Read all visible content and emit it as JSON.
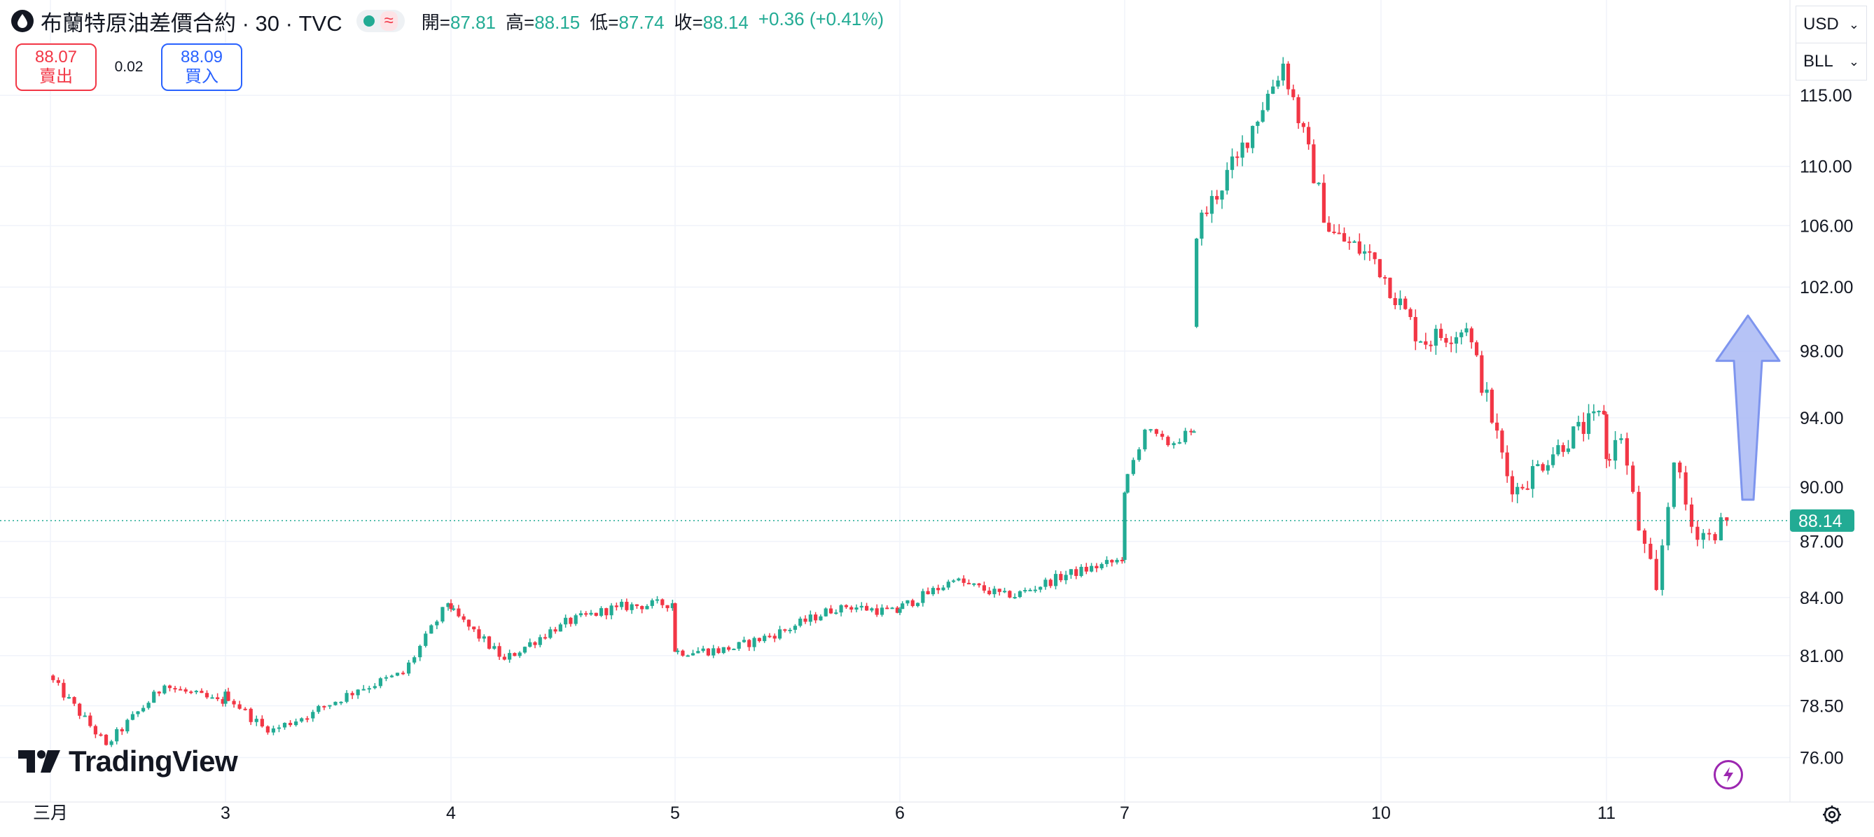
{
  "header": {
    "title": "布蘭特原油差價合約 · 30 · TVC",
    "status_symbol": "≈",
    "ohlc": {
      "open_label": "開=",
      "open": "87.81",
      "high_label": "高=",
      "high": "88.15",
      "low_label": "低=",
      "low": "87.74",
      "close_label": "收=",
      "close": "88.14",
      "change": "+0.36 (+0.41%)"
    }
  },
  "quote": {
    "sell_price": "88.07",
    "sell_label": "賣出",
    "spread": "0.02",
    "buy_price": "88.09",
    "buy_label": "買入"
  },
  "dropdowns": {
    "currency": "USD",
    "unit": "BLL"
  },
  "branding": {
    "logo_text": "TradingView"
  },
  "colors": {
    "up": "#22ab94",
    "down": "#f23645",
    "grid": "#f0f3fa",
    "price_line": "#22ab94",
    "arrow_fill": "#a9b9f5",
    "arrow_stroke": "#7e95ee"
  },
  "icons": {
    "bolt": "lightning-icon",
    "settings": "gear-icon",
    "symbol": "oil-drop-icon"
  },
  "chart_data": {
    "type": "candlestick",
    "interval": "30",
    "yaxis": {
      "ticks": [
        "115.00",
        "110.00",
        "106.00",
        "102.00",
        "98.00",
        "94.00",
        "90.00",
        "87.00",
        "84.00",
        "81.00",
        "78.50",
        "76.00"
      ],
      "scale": "log",
      "range": [
        74.5,
        121
      ]
    },
    "xaxis": {
      "ticks": [
        "三月",
        "3",
        "4",
        "5",
        "6",
        "7",
        "10",
        "11"
      ]
    },
    "last_price": "88.14",
    "grid": true,
    "annotation": "blue upward arrow on right side",
    "anchors": [
      {
        "day": "三月",
        "open": 80,
        "close": 79
      },
      {
        "day": "三月",
        "close": 76.6
      },
      {
        "day": "三月",
        "close": 79.5
      },
      {
        "day": "三月",
        "close": 78.6
      },
      {
        "day": "3",
        "close": 79.2
      },
      {
        "day": "3",
        "close": 77.2
      },
      {
        "day": "3",
        "close": 78.2
      },
      {
        "day": "3",
        "close": 79.3
      },
      {
        "day": "3",
        "close": 80.1
      },
      {
        "day": "3",
        "close": 83.7
      },
      {
        "day": "4",
        "close": 83.4
      },
      {
        "day": "4",
        "close": 80.8
      },
      {
        "day": "4",
        "close": 82.6
      },
      {
        "day": "4",
        "close": 83.5
      },
      {
        "day": "4",
        "close": 83.7
      },
      {
        "day": "5",
        "close": 81.2
      },
      {
        "day": "5",
        "close": 81.3
      },
      {
        "day": "5",
        "close": 82.3
      },
      {
        "day": "5",
        "close": 83.6
      },
      {
        "day": "5",
        "close": 83.2
      },
      {
        "day": "6",
        "close": 83.4
      },
      {
        "day": "6",
        "close": 84.9
      },
      {
        "day": "6",
        "close": 84.0
      },
      {
        "day": "6",
        "close": 85.2
      },
      {
        "day": "6",
        "close": 86.0
      },
      {
        "day": "7",
        "close": 89.7
      },
      {
        "day": "7",
        "close": 93.3
      },
      {
        "day": "7",
        "close": 92.4
      },
      {
        "day": "7",
        "close": 93.2
      },
      {
        "day": "10",
        "open": 99.5,
        "close": 105.2
      },
      {
        "day": "10",
        "close": 110.6
      },
      {
        "day": "10",
        "close": 117.3
      },
      {
        "day": "10",
        "close": 105.6
      },
      {
        "day": "10",
        "close": 103.8
      },
      {
        "day": "10",
        "close": 98.6
      },
      {
        "day": "10",
        "close": 99.4
      },
      {
        "day": "10",
        "close": 89.6
      },
      {
        "day": "10",
        "close": 92.4
      },
      {
        "day": "10",
        "close": 94.2
      },
      {
        "day": "11",
        "close": 91.6
      },
      {
        "day": "11",
        "close": 92.8
      },
      {
        "day": "11",
        "close": 87.6
      },
      {
        "day": "11",
        "close": 84.4
      },
      {
        "day": "11",
        "close": 91.4
      },
      {
        "day": "11",
        "close": 87.8
      },
      {
        "day": "11",
        "close": 87.4
      },
      {
        "day": "11",
        "close": 88.14
      }
    ]
  }
}
